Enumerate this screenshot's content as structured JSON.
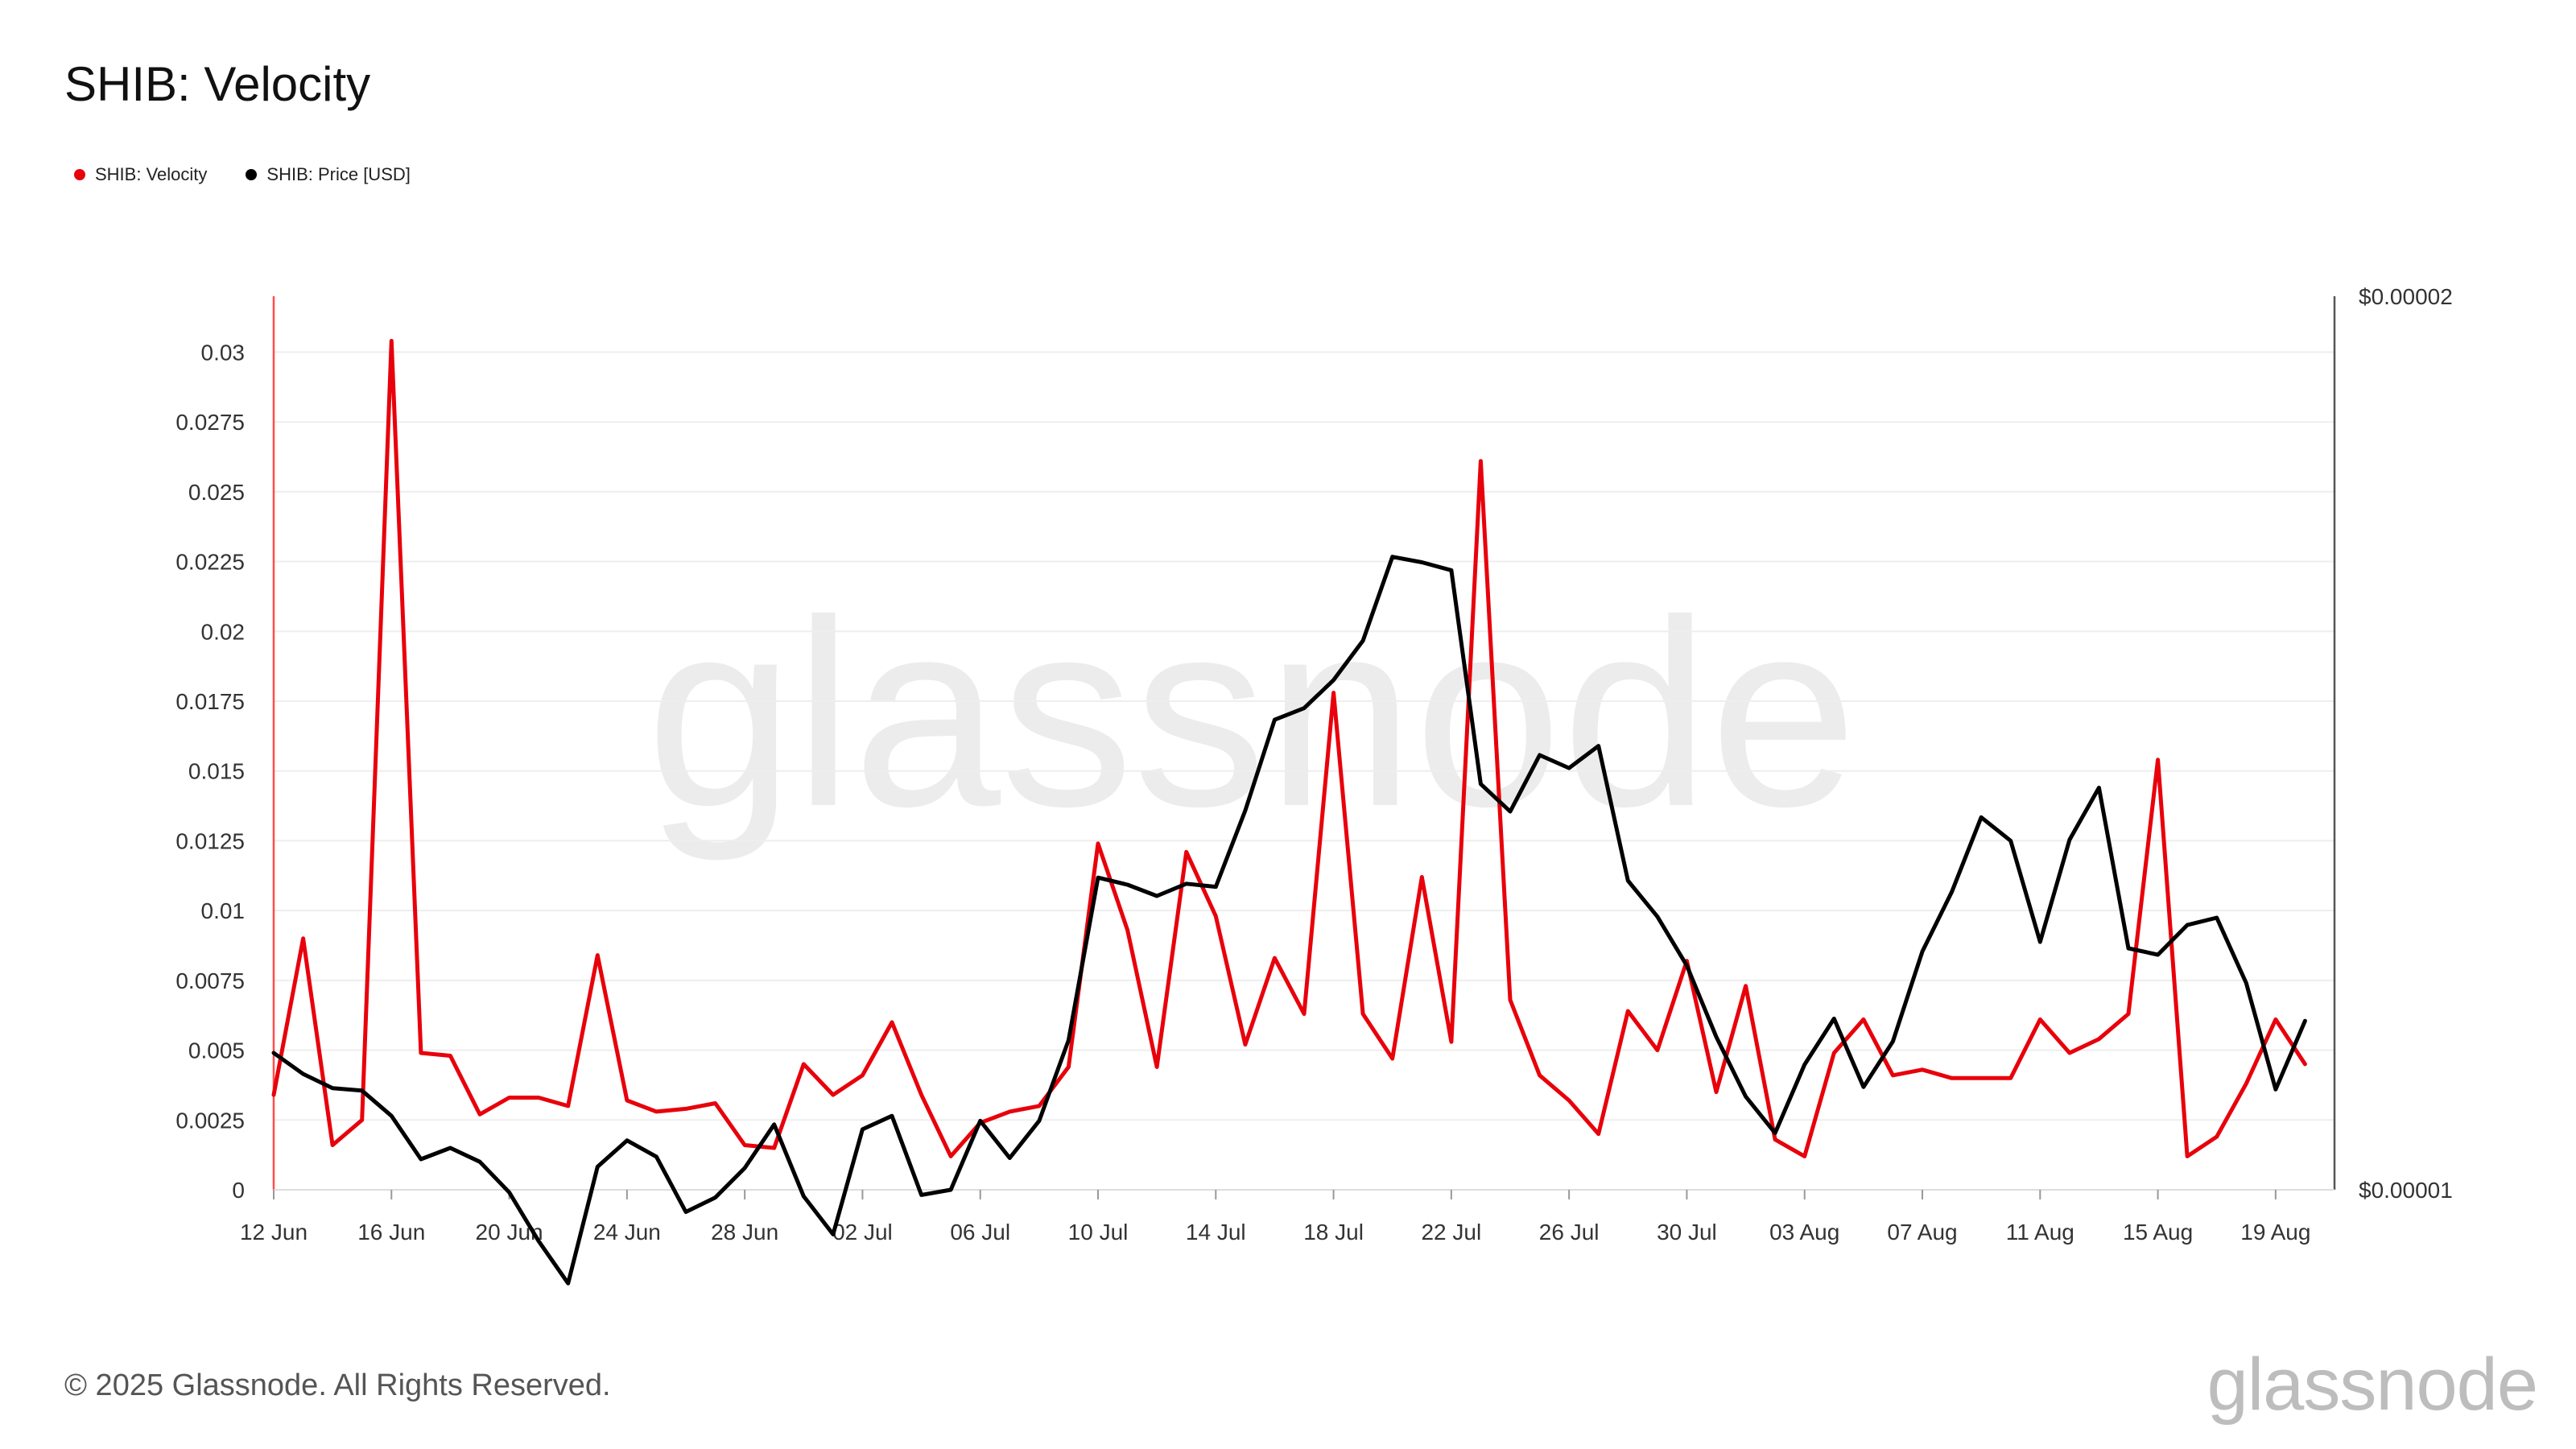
{
  "title": "SHIB: Velocity",
  "legend": [
    {
      "label": "SHIB: Velocity",
      "color": "#e8000b"
    },
    {
      "label": "SHIB: Price [USD]",
      "color": "#000000"
    }
  ],
  "footer": {
    "copyright": "© 2025 Glassnode. All Rights Reserved.",
    "brand": "glassnode"
  },
  "watermark": "glassnode",
  "chart_data": {
    "type": "line",
    "x_start": "2025-06-12",
    "x_end": "2025-08-21",
    "x_tick_labels": [
      "12 Jun",
      "16 Jun",
      "20 Jun",
      "24 Jun",
      "28 Jun",
      "02 Jul",
      "06 Jul",
      "10 Jul",
      "14 Jul",
      "18 Jul",
      "22 Jul",
      "26 Jul",
      "30 Jul",
      "03 Aug",
      "07 Aug",
      "11 Aug",
      "15 Aug",
      "19 Aug"
    ],
    "y_left": {
      "min": 0,
      "max": 0.032,
      "ticks": [
        0,
        0.0025,
        0.005,
        0.0075,
        0.01,
        0.0125,
        0.015,
        0.0175,
        0.02,
        0.0225,
        0.025,
        0.0275,
        0.03
      ],
      "tick_labels": [
        "0",
        "0.0025",
        "0.005",
        "0.0075",
        "0.01",
        "0.0125",
        "0.015",
        "0.0175",
        "0.02",
        "0.0225",
        "0.025",
        "0.0275",
        "0.03"
      ]
    },
    "y_right": {
      "scale": "log",
      "min": 1e-05,
      "max": 2e-05,
      "tick_labels": [
        "$0.00001",
        "$0.00002"
      ]
    },
    "grid": "horizontal",
    "legend_position": "top-left",
    "series": [
      {
        "name": "SHIB: Velocity",
        "axis": "left",
        "color": "#e8000b",
        "values": [
          0.0034,
          0.009,
          0.0016,
          0.0025,
          0.0304,
          0.0049,
          0.0048,
          0.0027,
          0.0033,
          0.0033,
          0.003,
          0.0084,
          0.0032,
          0.0028,
          0.0029,
          0.0031,
          0.0016,
          0.0015,
          0.0045,
          0.0034,
          0.0041,
          0.006,
          0.0034,
          0.0012,
          0.0024,
          0.0028,
          0.003,
          0.0044,
          0.0124,
          0.0093,
          0.0044,
          0.0121,
          0.0098,
          0.0052,
          0.0083,
          0.0063,
          0.0178,
          0.0063,
          0.0047,
          0.0112,
          0.0053,
          0.0261,
          0.0068,
          0.0041,
          0.0032,
          0.002,
          0.0064,
          0.005,
          0.0082,
          0.0035,
          0.0073,
          0.0018,
          0.0012,
          0.0049,
          0.0061,
          0.0041,
          0.0043,
          0.004,
          0.004,
          0.004,
          0.0061,
          0.0049,
          0.0054,
          0.0063,
          0.0154,
          0.0012,
          0.0019,
          0.0038,
          0.0061,
          0.0045
        ]
      },
      {
        "name": "SHIB: Price [USD]",
        "axis": "right",
        "color": "#000000",
        "values": [
          1.112e-05,
          1.094e-05,
          1.082e-05,
          1.08e-05,
          1.059e-05,
          1.024e-05,
          1.033e-05,
          1.022e-05,
          9.98e-06,
          9.61e-06,
          9.3e-06,
          1.018e-05,
          1.039e-05,
          1.026e-05,
          9.83e-06,
          9.94e-06,
          1.017e-05,
          1.052e-05,
          9.95e-06,
          9.66e-06,
          1.048e-05,
          1.059e-05,
          9.96e-06,
          1e-05,
          1.055e-05,
          1.025e-05,
          1.055e-05,
          1.123e-05,
          1.274e-05,
          1.267e-05,
          1.256e-05,
          1.268e-05,
          1.265e-05,
          1.342e-05,
          1.44e-05,
          1.453e-05,
          1.485e-05,
          1.531e-05,
          1.634e-05,
          1.627e-05,
          1.617e-05,
          1.37e-05,
          1.341e-05,
          1.401e-05,
          1.387e-05,
          1.411e-05,
          1.271e-05,
          1.236e-05,
          1.19e-05,
          1.126e-05,
          1.075e-05,
          1.045e-05,
          1.102e-05,
          1.142e-05,
          1.083e-05,
          1.122e-05,
          1.203e-05,
          1.26e-05,
          1.335e-05,
          1.311e-05,
          1.212e-05,
          1.312e-05,
          1.366e-05,
          1.206e-05,
          1.2e-05,
          1.228e-05,
          1.235e-05,
          1.174e-05,
          1.081e-05,
          1.14e-05
        ]
      }
    ]
  }
}
